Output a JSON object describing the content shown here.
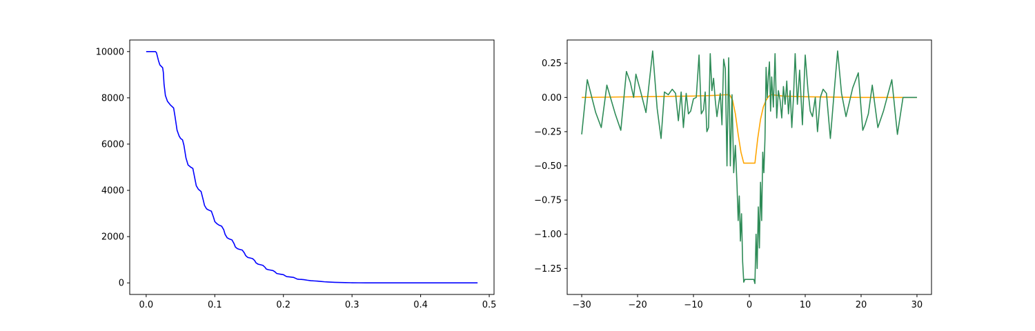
{
  "chart_data": [
    {
      "type": "line",
      "title": "",
      "xlabel": "",
      "ylabel": "",
      "xlim": [
        -0.024,
        0.507
      ],
      "ylim": [
        -500,
        10500
      ],
      "grid": false,
      "xticks": [
        0.0,
        0.1,
        0.2,
        0.3,
        0.4,
        0.5
      ],
      "xtick_labels": [
        "0.0",
        "0.1",
        "0.2",
        "0.3",
        "0.4",
        "0.5"
      ],
      "yticks": [
        0,
        2000,
        4000,
        6000,
        8000,
        10000
      ],
      "ytick_labels": [
        "0",
        "2000",
        "4000",
        "6000",
        "8000",
        "10000"
      ],
      "series": [
        {
          "color": "#0000ff",
          "x": [
            0.0,
            0.0135,
            0.015,
            0.018,
            0.02,
            0.024,
            0.025,
            0.026,
            0.028,
            0.031,
            0.035,
            0.04,
            0.042,
            0.045,
            0.048,
            0.05,
            0.053,
            0.055,
            0.058,
            0.061,
            0.065,
            0.068,
            0.07,
            0.073,
            0.076,
            0.08,
            0.083,
            0.085,
            0.088,
            0.091,
            0.095,
            0.098,
            0.1,
            0.103,
            0.106,
            0.11,
            0.113,
            0.115,
            0.118,
            0.121,
            0.125,
            0.128,
            0.13,
            0.133,
            0.136,
            0.14,
            0.143,
            0.145,
            0.148,
            0.151,
            0.155,
            0.158,
            0.16,
            0.163,
            0.166,
            0.17,
            0.173,
            0.175,
            0.178,
            0.181,
            0.185,
            0.188,
            0.19,
            0.193,
            0.196,
            0.2,
            0.203,
            0.205,
            0.208,
            0.211,
            0.215,
            0.218,
            0.22,
            0.223,
            0.226,
            0.23,
            0.235,
            0.24,
            0.245,
            0.25,
            0.255,
            0.26,
            0.265,
            0.27,
            0.275,
            0.28,
            0.29,
            0.3,
            0.31,
            0.32,
            0.33,
            0.34,
            0.35,
            0.37,
            0.4,
            0.44,
            0.483
          ],
          "y": [
            10000,
            10000,
            9950,
            9600,
            9420,
            9300,
            9100,
            8600,
            8100,
            7850,
            7700,
            7560,
            7200,
            6600,
            6350,
            6250,
            6180,
            5950,
            5400,
            5100,
            5000,
            4950,
            4650,
            4200,
            4050,
            3950,
            3600,
            3350,
            3200,
            3150,
            3100,
            2850,
            2650,
            2560,
            2500,
            2450,
            2300,
            2100,
            1950,
            1900,
            1860,
            1700,
            1550,
            1480,
            1450,
            1420,
            1300,
            1180,
            1100,
            1080,
            1050,
            970,
            870,
            810,
            790,
            760,
            680,
            600,
            570,
            555,
            530,
            470,
            410,
            390,
            375,
            355,
            300,
            270,
            262,
            250,
            235,
            195,
            165,
            155,
            150,
            140,
            115,
            95,
            85,
            75,
            62,
            48,
            40,
            32,
            25,
            19,
            11,
            6,
            3,
            2,
            1,
            1,
            0,
            0,
            0,
            0,
            0
          ]
        }
      ]
    },
    {
      "type": "line",
      "title": "",
      "xlabel": "",
      "ylabel": "",
      "xlim": [
        -32.6,
        32.6
      ],
      "ylim": [
        -1.44,
        0.42
      ],
      "grid": false,
      "xticks": [
        -30,
        -20,
        -10,
        0,
        10,
        20,
        30
      ],
      "xtick_labels": [
        "−30",
        "−20",
        "−10",
        "0",
        "10",
        "20",
        "30"
      ],
      "yticks": [
        -1.25,
        -1.0,
        -0.75,
        -0.5,
        -0.25,
        0.0,
        0.25
      ],
      "ytick_labels": [
        "−1.25",
        "−1.00",
        "−0.75",
        "−0.50",
        "−0.25",
        "0.00",
        "0.25"
      ],
      "series": [
        {
          "color": "#ffa500",
          "x": [
            -30,
            -20,
            -10,
            -6,
            -5,
            -4,
            -3.5,
            -3,
            -2.5,
            -2,
            -1.5,
            -1,
            -0.5,
            0,
            0.5,
            1,
            1.5,
            2,
            2.5,
            3,
            3.5,
            4,
            5,
            6,
            10,
            20,
            30
          ],
          "y": [
            0.0,
            0.005,
            0.01,
            0.015,
            0.018,
            0.02,
            0.018,
            -0.02,
            -0.12,
            -0.27,
            -0.4,
            -0.48,
            -0.48,
            -0.48,
            -0.48,
            -0.48,
            -0.3,
            -0.16,
            -0.07,
            -0.02,
            0.01,
            0.02,
            0.015,
            0.01,
            0.005,
            0.0,
            0.0
          ]
        },
        {
          "color": "#2e8b57",
          "x": [
            -30,
            -29,
            -27.5,
            -26.5,
            -25.5,
            -24,
            -23,
            -22,
            -21.3,
            -20.7,
            -20.3,
            -19.5,
            -18.5,
            -17.3,
            -16.5,
            -15.8,
            -15.2,
            -14.5,
            -13.8,
            -13.2,
            -12.7,
            -12.2,
            -11.8,
            -11.3,
            -10.9,
            -10.5,
            -10,
            -9.5,
            -9,
            -8.6,
            -8.2,
            -7.9,
            -7.6,
            -7.3,
            -7.0,
            -6.7,
            -6.4,
            -6.1,
            -5.8,
            -5.5,
            -5.2,
            -4.9,
            -4.6,
            -4.3,
            -4.0,
            -3.7,
            -3.4,
            -3.1,
            -2.8,
            -2.5,
            -2.2,
            -2.0,
            -1.8,
            -1.6,
            -1.4,
            -1.2,
            -1.0,
            -0.8,
            -0.6,
            -0.4,
            0.8,
            1.0,
            1.2,
            1.4,
            1.6,
            1.8,
            2.0,
            2.2,
            2.4,
            2.6,
            2.8,
            3.0,
            3.2,
            3.4,
            3.6,
            3.8,
            4.0,
            4.3,
            4.6,
            4.9,
            5.2,
            5.5,
            5.8,
            6.1,
            6.4,
            6.7,
            7.0,
            7.3,
            7.6,
            7.9,
            8.2,
            8.6,
            9.0,
            9.5,
            10.0,
            10.5,
            10.9,
            11.3,
            11.8,
            12.2,
            12.7,
            13.2,
            13.8,
            14.5,
            15.2,
            15.8,
            16.5,
            17.3,
            18.5,
            19.5,
            20.3,
            20.7,
            21.3,
            22.0,
            23.0,
            24.0,
            25.5,
            26.5,
            27.5,
            29.0,
            30.0
          ],
          "y": [
            -0.27,
            0.13,
            -0.11,
            -0.22,
            0.09,
            -0.12,
            -0.24,
            0.19,
            0.11,
            0.0,
            0.17,
            0.05,
            -0.11,
            0.34,
            -0.08,
            -0.3,
            0.04,
            0.02,
            0.06,
            0.03,
            -0.17,
            0.04,
            -0.22,
            0.03,
            -0.12,
            -0.1,
            -0.01,
            0.0,
            0.31,
            -0.12,
            -0.09,
            0.04,
            -0.25,
            -0.22,
            0.32,
            0.05,
            0.14,
            -0.02,
            -0.14,
            -0.05,
            0.03,
            -0.2,
            0.28,
            0.21,
            -0.5,
            0.29,
            -0.5,
            0.02,
            -0.55,
            -0.35,
            -0.65,
            -0.9,
            -0.72,
            -1.05,
            -0.85,
            -1.2,
            -1.35,
            -1.33,
            -1.33,
            -1.33,
            -1.33,
            -1.36,
            -1.0,
            -1.25,
            -0.8,
            -1.1,
            -0.62,
            -0.9,
            -0.4,
            -0.55,
            -0.3,
            0.22,
            0.0,
            0.15,
            0.26,
            -0.1,
            0.15,
            -0.07,
            0.32,
            -0.15,
            0.05,
            -0.02,
            -0.15,
            0.08,
            -0.05,
            0.12,
            -0.12,
            0.05,
            -0.22,
            0.0,
            0.32,
            -0.05,
            0.2,
            -0.2,
            0.31,
            0.05,
            -0.1,
            -0.14,
            0.0,
            -0.25,
            0.0,
            0.06,
            0.03,
            -0.3,
            0.05,
            0.34,
            0.03,
            -0.14,
            0.07,
            0.18,
            -0.24,
            -0.2,
            -0.12,
            0.09,
            -0.22,
            -0.1,
            0.13,
            -0.27,
            0.0,
            0.0,
            0.0
          ]
        }
      ]
    }
  ]
}
